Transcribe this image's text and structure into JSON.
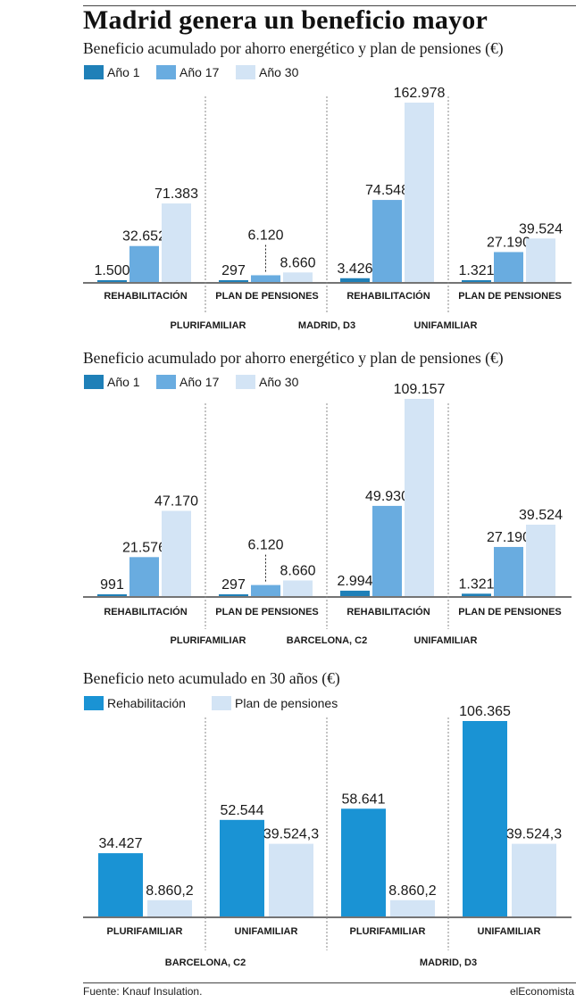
{
  "title": "Madrid genera un beneficio mayor",
  "source": "Fuente: Knauf Insulation.",
  "brand": "elEconomista",
  "colors": {
    "year1": "#1f80b8",
    "year17": "#69ace0",
    "year30": "#d3e4f5",
    "rehab": "#1a93d4",
    "pension": "#d3e4f5",
    "text": "#1a1a1a",
    "divider": "#888888"
  },
  "chart_data": [
    {
      "type": "bar",
      "title": "Beneficio acumulado por ahorro energético y plan de pensiones (€)",
      "legend": [
        "Año 1",
        "Año 17",
        "Año 30"
      ],
      "region": "MADRID, D3",
      "groups": [
        {
          "category": "REHABILITACIÓN",
          "values": [
            1500,
            32652,
            71383
          ],
          "labels": [
            "1.500",
            "32.652",
            "71.383"
          ]
        },
        {
          "category": "PLAN DE PENSIONES",
          "values": [
            297,
            6120,
            8660
          ],
          "labels": [
            "297",
            "6.120",
            "8.660"
          ]
        },
        {
          "category": "REHABILITACIÓN",
          "values": [
            3426,
            74548,
            162978
          ],
          "labels": [
            "3.426",
            "74.548",
            "162.978"
          ]
        },
        {
          "category": "PLAN DE PENSIONES",
          "values": [
            1321,
            27190,
            39524
          ],
          "labels": [
            "1.321",
            "27.190",
            "39.524"
          ]
        }
      ],
      "supergroups": [
        "PLURIFAMILIAR",
        "UNIFAMILIAR"
      ],
      "ylim": [
        0,
        162978
      ]
    },
    {
      "type": "bar",
      "title": "Beneficio acumulado por ahorro energético y plan de pensiones (€)",
      "legend": [
        "Año 1",
        "Año 17",
        "Año 30"
      ],
      "region": "BARCELONA, C2",
      "groups": [
        {
          "category": "REHABILITACIÓN",
          "values": [
            991,
            21576,
            47170
          ],
          "labels": [
            "991",
            "21.576",
            "47.170"
          ]
        },
        {
          "category": "PLAN DE PENSIONES",
          "values": [
            297,
            6120,
            8660
          ],
          "labels": [
            "297",
            "6.120",
            "8.660"
          ]
        },
        {
          "category": "REHABILITACIÓN",
          "values": [
            2994,
            49930,
            109157
          ],
          "labels": [
            "2.994",
            "49.930",
            "109.157"
          ]
        },
        {
          "category": "PLAN DE PENSIONES",
          "values": [
            1321,
            27190,
            39524
          ],
          "labels": [
            "1.321",
            "27.190",
            "39.524"
          ]
        }
      ],
      "supergroups": [
        "PLURIFAMILIAR",
        "UNIFAMILIAR"
      ],
      "ylim": [
        0,
        109157
      ]
    },
    {
      "type": "bar",
      "title": "Beneficio neto acumulado en 30 años (€)",
      "legend": [
        "Rehabilitación",
        "Plan de pensiones"
      ],
      "groups": [
        {
          "category": "PLURIFAMILIAR",
          "values": [
            34427,
            8860.2
          ],
          "labels": [
            "34.427",
            "8.860,2"
          ]
        },
        {
          "category": "UNIFAMILIAR",
          "values": [
            52544,
            39524.3
          ],
          "labels": [
            "52.544",
            "39.524,3"
          ]
        },
        {
          "category": "PLURIFAMILIAR",
          "values": [
            58641,
            8860.2
          ],
          "labels": [
            "58.641",
            "8.860,2"
          ]
        },
        {
          "category": "UNIFAMILIAR",
          "values": [
            106365,
            39524.3
          ],
          "labels": [
            "106.365",
            "39.524,3"
          ]
        }
      ],
      "regions": [
        "BARCELONA, C2",
        "MADRID, D3"
      ],
      "ylim": [
        0,
        106365
      ]
    }
  ]
}
